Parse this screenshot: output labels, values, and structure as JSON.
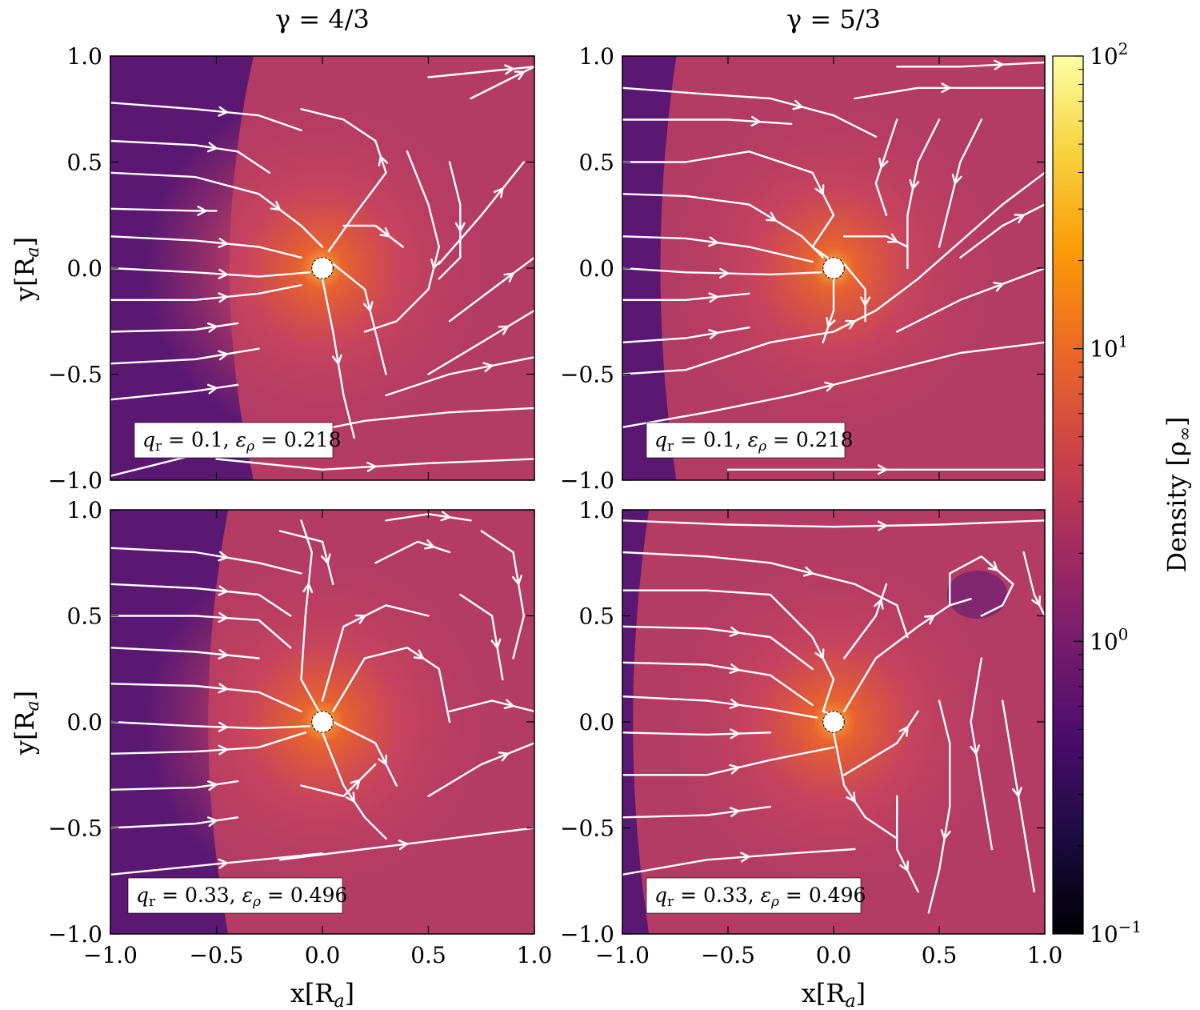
{
  "chart_data": {
    "type": "heatmap",
    "column_titles": [
      "γ = 4/3",
      "γ = 5/3"
    ],
    "xlabel": "x[R",
    "xlabel_sub": "a",
    "xlabel_end": "]",
    "ylabel": "y[R",
    "ylabel_sub": "a",
    "ylabel_end": "]",
    "xlim": [
      -1.0,
      1.0
    ],
    "ylim": [
      -1.0,
      1.0
    ],
    "xticks": [
      -1.0,
      -0.5,
      0.0,
      0.5,
      1.0
    ],
    "yticks": [
      -1.0,
      -0.5,
      0.0,
      0.5,
      1.0
    ],
    "xtick_labels": [
      "−1.0",
      "−0.5",
      "0.0",
      "0.5",
      "1.0"
    ],
    "ytick_labels": [
      "−1.0",
      "−0.5",
      "0.0",
      "0.5",
      "1.0"
    ],
    "colorbar": {
      "label": "Density [ρ",
      "label_sub": "∞",
      "label_end": "]",
      "scale": "log",
      "range": [
        0.1,
        100
      ],
      "colormap": "inferno",
      "tick_values": [
        0.1,
        1,
        10,
        100
      ],
      "tick_labels": [
        {
          "base": "10",
          "exp": "−1"
        },
        {
          "base": "10",
          "exp": "0"
        },
        {
          "base": "10",
          "exp": "1"
        },
        {
          "base": "10",
          "exp": "2"
        }
      ]
    },
    "panels": [
      {
        "id": "top-left",
        "gamma": "4/3",
        "annotation": "q_r = 0.1, ε_ρ = 0.218",
        "ann": {
          "q": "q",
          "qsub": "r",
          "qval": " = 0.1, ",
          "e": "ε",
          "esub": "ρ",
          "eval": " = 0.218"
        },
        "shock_x": -0.4,
        "accretor": {
          "x": 0.0,
          "y": 0.0,
          "r": 0.05
        }
      },
      {
        "id": "top-right",
        "gamma": "5/3",
        "annotation": "q_r = 0.1, ε_ρ = 0.218",
        "ann": {
          "q": "q",
          "qsub": "r",
          "qval": " = 0.1, ",
          "e": "ε",
          "esub": "ρ",
          "eval": " = 0.218"
        },
        "shock_x": -0.82,
        "accretor": {
          "x": 0.0,
          "y": 0.0,
          "r": 0.05
        }
      },
      {
        "id": "bottom-left",
        "gamma": "4/3",
        "annotation": "q_r = 0.33, ε_ρ = 0.496",
        "ann": {
          "q": "q",
          "qsub": "r",
          "qval": " = 0.33, ",
          "e": "ε",
          "esub": "ρ",
          "eval": " = 0.496"
        },
        "shock_x": -0.52,
        "accretor": {
          "x": 0.0,
          "y": 0.0,
          "r": 0.05
        }
      },
      {
        "id": "bottom-right",
        "gamma": "5/3",
        "annotation": "q_r = 0.33, ε_ρ = 0.496",
        "ann": {
          "q": "q",
          "qsub": "r",
          "qval": " = 0.33, ",
          "e": "ε",
          "esub": "ρ",
          "eval": " = 0.496"
        },
        "shock_x": -0.95,
        "accretor": {
          "x": 0.0,
          "y": 0.0,
          "r": 0.05
        }
      }
    ]
  },
  "colors": {
    "upstream": "#5a1873",
    "post_shock": "#b43b64",
    "core_mid": "#e8622e",
    "core": "#fcae3a",
    "cmap_stops": [
      "#000004",
      "#1b0c41",
      "#4a0c6b",
      "#781c6d",
      "#a52c60",
      "#cf4446",
      "#ed6925",
      "#fb9b06",
      "#f7d13d",
      "#fcffa4"
    ]
  }
}
